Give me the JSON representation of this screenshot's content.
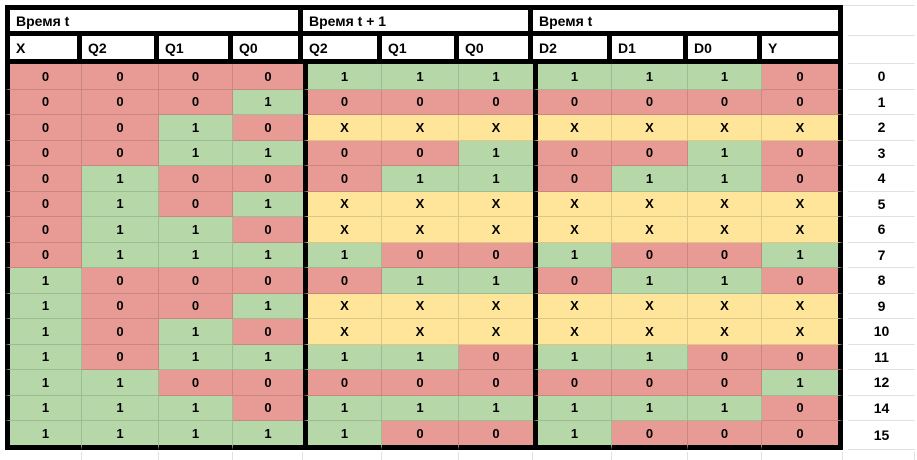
{
  "palette": {
    "red": "#e89a94",
    "green": "#b6d7a8",
    "yellow": "#ffe599",
    "header_bg": "#ffffff",
    "thick_border": "#000000",
    "gridline": "#e1e1e1"
  },
  "value_colors": {
    "0": "red",
    "1": "green",
    "X": "yellow"
  },
  "header": {
    "groups": [
      {
        "label": "Время t",
        "span": 4
      },
      {
        "label": "Время t + 1",
        "span": 3
      },
      {
        "label": "Время t",
        "span": 4
      }
    ],
    "columns": [
      "X",
      "Q2",
      "Q1",
      "Q0",
      "Q2",
      "Q1",
      "Q0",
      "D2",
      "D1",
      "D0",
      "Y"
    ]
  },
  "rows": [
    {
      "label": "0",
      "cells": [
        "0",
        "0",
        "0",
        "0",
        "1",
        "1",
        "1",
        "1",
        "1",
        "1",
        "0"
      ]
    },
    {
      "label": "1",
      "cells": [
        "0",
        "0",
        "0",
        "1",
        "0",
        "0",
        "0",
        "0",
        "0",
        "0",
        "0"
      ]
    },
    {
      "label": "2",
      "cells": [
        "0",
        "0",
        "1",
        "0",
        "X",
        "X",
        "X",
        "X",
        "X",
        "X",
        "X"
      ]
    },
    {
      "label": "3",
      "cells": [
        "0",
        "0",
        "1",
        "1",
        "0",
        "0",
        "1",
        "0",
        "0",
        "1",
        "0"
      ]
    },
    {
      "label": "4",
      "cells": [
        "0",
        "1",
        "0",
        "0",
        "0",
        "1",
        "1",
        "0",
        "1",
        "1",
        "0"
      ]
    },
    {
      "label": "5",
      "cells": [
        "0",
        "1",
        "0",
        "1",
        "X",
        "X",
        "X",
        "X",
        "X",
        "X",
        "X"
      ]
    },
    {
      "label": "6",
      "cells": [
        "0",
        "1",
        "1",
        "0",
        "X",
        "X",
        "X",
        "X",
        "X",
        "X",
        "X"
      ]
    },
    {
      "label": "7",
      "cells": [
        "0",
        "1",
        "1",
        "1",
        "1",
        "0",
        "0",
        "1",
        "0",
        "0",
        "1"
      ]
    },
    {
      "label": "8",
      "cells": [
        "1",
        "0",
        "0",
        "0",
        "0",
        "1",
        "1",
        "0",
        "1",
        "1",
        "0"
      ]
    },
    {
      "label": "9",
      "cells": [
        "1",
        "0",
        "0",
        "1",
        "X",
        "X",
        "X",
        "X",
        "X",
        "X",
        "X"
      ]
    },
    {
      "label": "10",
      "cells": [
        "1",
        "0",
        "1",
        "0",
        "X",
        "X",
        "X",
        "X",
        "X",
        "X",
        "X"
      ]
    },
    {
      "label": "11",
      "cells": [
        "1",
        "0",
        "1",
        "1",
        "1",
        "1",
        "0",
        "1",
        "1",
        "0",
        "0"
      ]
    },
    {
      "label": "12",
      "cells": [
        "1",
        "1",
        "0",
        "0",
        "0",
        "0",
        "0",
        "0",
        "0",
        "0",
        "1"
      ]
    },
    {
      "label": "14",
      "cells": [
        "1",
        "1",
        "1",
        "0",
        "1",
        "1",
        "1",
        "1",
        "1",
        "1",
        "0"
      ]
    },
    {
      "label": "15",
      "cells": [
        "1",
        "1",
        "1",
        "1",
        "1",
        "0",
        "0",
        "1",
        "0",
        "0",
        "0"
      ]
    }
  ]
}
